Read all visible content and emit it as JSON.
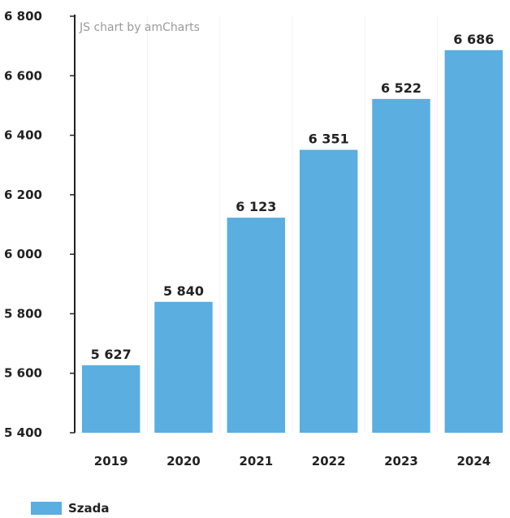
{
  "credit": "JS chart by amCharts",
  "colors": {
    "bar": "#5aaee0",
    "axis": "#222222",
    "grid": "#f2f2f2"
  },
  "chart_data": {
    "type": "bar",
    "categories": [
      "2019",
      "2020",
      "2021",
      "2022",
      "2023",
      "2024"
    ],
    "series": [
      {
        "name": "Szada",
        "values": [
          5627,
          5840,
          6123,
          6351,
          6522,
          6686
        ]
      }
    ],
    "value_labels": [
      "5 627",
      "5 840",
      "6 123",
      "6 351",
      "6 522",
      "6 686"
    ],
    "ylim": [
      5400,
      6800
    ],
    "yticks": [
      5400,
      5600,
      5800,
      6000,
      6200,
      6400,
      6600,
      6800
    ],
    "ytick_labels": [
      "5 400",
      "5 600",
      "5 800",
      "6 000",
      "6 200",
      "6 400",
      "6 600",
      "6 800"
    ],
    "grid": true,
    "legend_position": "bottom-left"
  }
}
